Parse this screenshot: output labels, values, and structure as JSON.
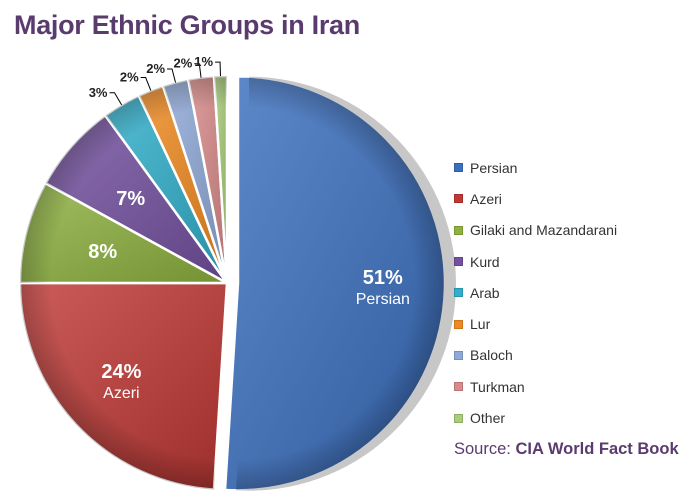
{
  "title": "Major Ethnic Groups in Iran",
  "source": {
    "prefix": "Source: ",
    "name": "CIA World Fact Book"
  },
  "chart_data": {
    "type": "pie",
    "title": "Major Ethnic Groups in Iran",
    "legend_position": "right",
    "unit": "%",
    "slices": [
      {
        "label": "Persian",
        "value": 51,
        "display": "51%",
        "color": "#3a6fbf"
      },
      {
        "label": "Azeri",
        "value": 24,
        "display": "24%",
        "color": "#c03835"
      },
      {
        "label": "Gilaki and Mazandarani",
        "value": 8,
        "display": "8%",
        "color": "#8db23e"
      },
      {
        "label": "Kurd",
        "value": 7,
        "display": "7%",
        "color": "#7450a0"
      },
      {
        "label": "Arab",
        "value": 3,
        "display": "3%",
        "color": "#30aecb"
      },
      {
        "label": "Lur",
        "value": 2,
        "display": "2%",
        "color": "#f08a1f"
      },
      {
        "label": "Baloch",
        "value": 2,
        "display": "2%",
        "color": "#8fa9d8"
      },
      {
        "label": "Turkman",
        "value": 2,
        "display": "2%",
        "color": "#d98a8a"
      },
      {
        "label": "Other",
        "value": 1,
        "display": "1%",
        "color": "#a9cd7a"
      }
    ]
  }
}
